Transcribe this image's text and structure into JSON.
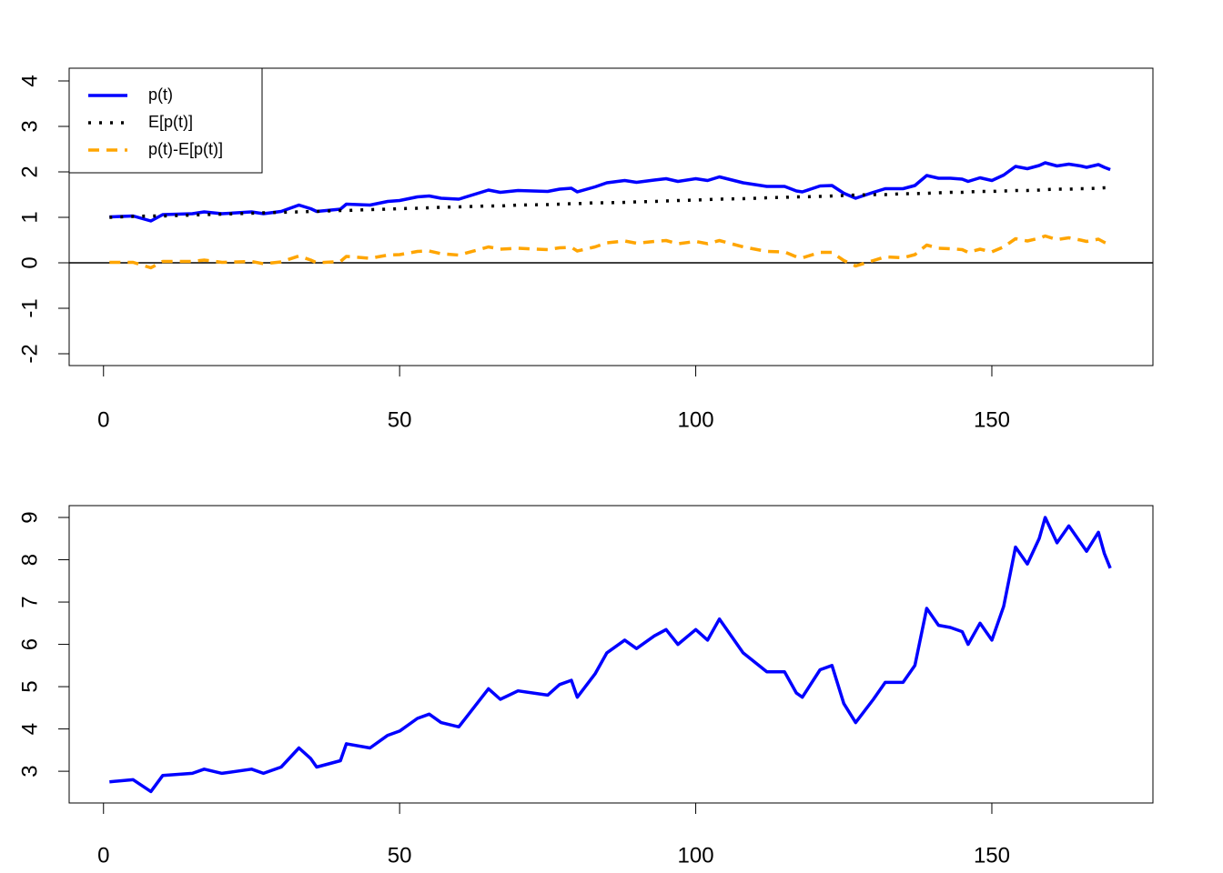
{
  "chart_data": [
    {
      "type": "line",
      "x": [
        1,
        5,
        8,
        10,
        15,
        17,
        20,
        25,
        27,
        30,
        33,
        35,
        36,
        40,
        41,
        45,
        48,
        50,
        53,
        55,
        57,
        60,
        65,
        67,
        70,
        75,
        77,
        79,
        80,
        83,
        85,
        88,
        90,
        93,
        95,
        97,
        100,
        102,
        104,
        108,
        112,
        115,
        117,
        118,
        121,
        123,
        125,
        127,
        130,
        132,
        135,
        137,
        139,
        141,
        143,
        145,
        146,
        148,
        150,
        152,
        154,
        156,
        158,
        159,
        161,
        163,
        165,
        166,
        168,
        169,
        170
      ],
      "series": [
        {
          "name": "p(t)",
          "color": "#0000ff",
          "dash": "solid",
          "values": [
            1.01,
            1.03,
            0.92,
            1.06,
            1.08,
            1.12,
            1.08,
            1.12,
            1.08,
            1.13,
            1.27,
            1.19,
            1.13,
            1.18,
            1.29,
            1.27,
            1.35,
            1.37,
            1.45,
            1.47,
            1.42,
            1.4,
            1.6,
            1.55,
            1.59,
            1.57,
            1.62,
            1.64,
            1.56,
            1.67,
            1.76,
            1.81,
            1.77,
            1.82,
            1.85,
            1.79,
            1.85,
            1.81,
            1.89,
            1.76,
            1.68,
            1.68,
            1.58,
            1.56,
            1.69,
            1.7,
            1.53,
            1.42,
            1.55,
            1.63,
            1.63,
            1.7,
            1.92,
            1.86,
            1.86,
            1.84,
            1.79,
            1.87,
            1.81,
            1.93,
            2.12,
            2.07,
            2.14,
            2.2,
            2.13,
            2.17,
            2.13,
            2.1,
            2.16,
            2.1,
            2.05
          ]
        },
        {
          "name": "E[p(t)]",
          "color": "#000000",
          "dash": "dotted",
          "values": [
            1.0,
            1.02,
            1.03,
            1.03,
            1.05,
            1.06,
            1.07,
            1.09,
            1.1,
            1.11,
            1.12,
            1.13,
            1.13,
            1.15,
            1.15,
            1.17,
            1.18,
            1.19,
            1.2,
            1.21,
            1.22,
            1.23,
            1.25,
            1.25,
            1.27,
            1.28,
            1.29,
            1.3,
            1.3,
            1.32,
            1.32,
            1.33,
            1.34,
            1.35,
            1.36,
            1.37,
            1.38,
            1.39,
            1.4,
            1.41,
            1.43,
            1.44,
            1.45,
            1.45,
            1.46,
            1.47,
            1.48,
            1.49,
            1.5,
            1.5,
            1.52,
            1.52,
            1.53,
            1.54,
            1.55,
            1.55,
            1.56,
            1.57,
            1.57,
            1.58,
            1.59,
            1.59,
            1.6,
            1.61,
            1.62,
            1.62,
            1.63,
            1.63,
            1.64,
            1.65,
            1.65
          ]
        },
        {
          "name": "p(t)-E[p(t)]",
          "color": "#ffa500",
          "dash": "dashed",
          "values": [
            0.01,
            0.01,
            -0.11,
            0.03,
            0.03,
            0.06,
            0.01,
            0.03,
            -0.02,
            0.02,
            0.15,
            0.06,
            0.0,
            0.03,
            0.14,
            0.1,
            0.17,
            0.18,
            0.25,
            0.26,
            0.2,
            0.17,
            0.35,
            0.3,
            0.32,
            0.29,
            0.33,
            0.34,
            0.26,
            0.35,
            0.44,
            0.48,
            0.43,
            0.47,
            0.49,
            0.42,
            0.47,
            0.42,
            0.49,
            0.35,
            0.25,
            0.24,
            0.13,
            0.11,
            0.23,
            0.23,
            0.05,
            -0.07,
            0.05,
            0.13,
            0.11,
            0.18,
            0.39,
            0.32,
            0.31,
            0.29,
            0.23,
            0.3,
            0.24,
            0.35,
            0.53,
            0.48,
            0.54,
            0.59,
            0.51,
            0.55,
            0.5,
            0.47,
            0.52,
            0.45,
            0.4
          ]
        }
      ],
      "xlim": [
        -5.8,
        177.2
      ],
      "xticks": [
        0,
        50,
        100,
        150
      ],
      "ylim": [
        -2.26,
        4.28
      ],
      "yticks": [
        -2,
        -1,
        0,
        1,
        2,
        3,
        4
      ],
      "hline": 0,
      "legend": "top-left"
    },
    {
      "type": "line",
      "x": [
        1,
        5,
        8,
        10,
        15,
        17,
        20,
        25,
        27,
        30,
        33,
        35,
        36,
        40,
        41,
        45,
        48,
        50,
        53,
        55,
        57,
        60,
        65,
        67,
        70,
        75,
        77,
        79,
        80,
        83,
        85,
        88,
        90,
        93,
        95,
        97,
        100,
        102,
        104,
        108,
        112,
        115,
        117,
        118,
        121,
        123,
        125,
        127,
        130,
        132,
        135,
        137,
        139,
        141,
        143,
        145,
        146,
        148,
        150,
        152,
        154,
        156,
        158,
        159,
        161,
        163,
        165,
        166,
        168,
        169,
        170
      ],
      "series": [
        {
          "color": "#0000ff",
          "dash": "solid",
          "values": [
            2.75,
            2.8,
            2.52,
            2.9,
            2.95,
            3.05,
            2.95,
            3.05,
            2.95,
            3.1,
            3.55,
            3.3,
            3.1,
            3.25,
            3.65,
            3.55,
            3.85,
            3.95,
            4.25,
            4.35,
            4.15,
            4.05,
            4.95,
            4.7,
            4.9,
            4.8,
            5.05,
            5.15,
            4.75,
            5.3,
            5.8,
            6.1,
            5.9,
            6.2,
            6.35,
            6.0,
            6.35,
            6.1,
            6.6,
            5.8,
            5.35,
            5.35,
            4.85,
            4.75,
            5.4,
            5.5,
            4.6,
            4.15,
            4.7,
            5.1,
            5.1,
            5.5,
            6.85,
            6.45,
            6.4,
            6.3,
            6.0,
            6.5,
            6.1,
            6.9,
            8.3,
            7.9,
            8.5,
            9.0,
            8.4,
            8.8,
            8.4,
            8.2,
            8.65,
            8.15,
            7.8
          ]
        }
      ],
      "xlim": [
        -5.8,
        177.2
      ],
      "xticks": [
        0,
        50,
        100,
        150
      ],
      "ylim": [
        2.25,
        9.28
      ],
      "yticks": [
        3,
        4,
        5,
        6,
        7,
        8,
        9
      ]
    }
  ]
}
